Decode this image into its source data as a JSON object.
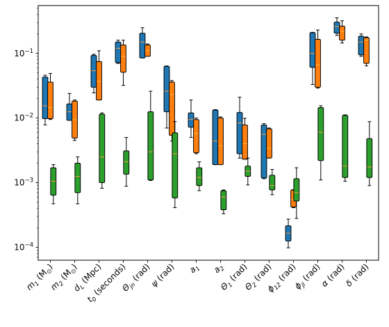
{
  "chart_data": {
    "type": "box",
    "yscale": "log",
    "ylim": [
      6.3e-05,
      0.55
    ],
    "y_ticks": [
      {
        "value": 0.0001,
        "base": "10",
        "exp": "−4"
      },
      {
        "value": 0.001,
        "base": "10",
        "exp": "−3"
      },
      {
        "value": 0.01,
        "base": "10",
        "exp": "−2"
      },
      {
        "value": 0.1,
        "base": "10",
        "exp": "−1"
      }
    ],
    "categories": [
      {
        "main": "m",
        "sub": "1",
        "unit": " (M",
        "unitsub": "⊙",
        "close": ")"
      },
      {
        "main": "m",
        "sub": "2",
        "unit": " (M",
        "unitsub": "⊙",
        "close": ")"
      },
      {
        "main": "d",
        "sub": "L",
        "unit": " (Mpc)",
        "unitsub": "",
        "close": ""
      },
      {
        "main": "t",
        "sub": "0",
        "unit": " (seconds)",
        "unitsub": "",
        "close": ""
      },
      {
        "main": "Θ",
        "sub": "jn",
        "unit": " (rad)",
        "unitsub": "",
        "close": ""
      },
      {
        "main": "ψ",
        "sub": "",
        "unit": " (rad)",
        "unitsub": "",
        "close": ""
      },
      {
        "main": "a",
        "sub": "1",
        "unit": "",
        "unitsub": "",
        "close": ""
      },
      {
        "main": "a",
        "sub": "2",
        "unit": "",
        "unitsub": "",
        "close": ""
      },
      {
        "main": "Θ",
        "sub": "1",
        "unit": " (rad)",
        "unitsub": "",
        "close": ""
      },
      {
        "main": "Θ",
        "sub": "2",
        "unit": " (rad)",
        "unitsub": "",
        "close": ""
      },
      {
        "main": "ϕ",
        "sub": "12",
        "unit": " (rad)",
        "unitsub": "",
        "close": ""
      },
      {
        "main": "ϕ",
        "sub": "jl",
        "unit": " (rad)",
        "unitsub": "",
        "close": ""
      },
      {
        "main": "α",
        "sub": "",
        "unit": " (rad)",
        "unitsub": "",
        "close": ""
      },
      {
        "main": "δ",
        "sub": "",
        "unit": " (rad)",
        "unitsub": "",
        "close": ""
      }
    ],
    "series": [
      {
        "color": "#1f77b4",
        "boxes": [
          [
            0.0078,
            0.0098,
            0.0155,
            0.043,
            0.046
          ],
          [
            0.0092,
            0.0092,
            0.0125,
            0.0165,
            0.024
          ],
          [
            0.0245,
            0.03,
            0.054,
            0.093,
            0.097
          ],
          [
            0.07,
            0.072,
            0.12,
            0.15,
            0.16
          ],
          [
            0.085,
            0.085,
            0.15,
            0.205,
            0.25
          ],
          [
            0.007,
            0.0125,
            0.026,
            0.063,
            0.064
          ],
          [
            0.005,
            0.0072,
            0.0095,
            0.012,
            0.019
          ],
          [
            0.0019,
            0.0019,
            0.0044,
            0.0133,
            0.0135
          ],
          [
            0.0024,
            0.0028,
            0.0084,
            0.0122,
            0.021
          ],
          [
            0.00115,
            0.00118,
            0.0056,
            0.0078,
            0.0082
          ],
          [
            9.8e-05,
            0.000125,
            0.000165,
            0.000215,
            0.000272
          ],
          [
            0.033,
            0.061,
            0.1,
            0.21,
            0.212
          ],
          [
            0.19,
            0.205,
            0.26,
            0.305,
            0.355
          ],
          [
            0.09,
            0.095,
            0.15,
            0.185,
            0.2
          ]
        ]
      },
      {
        "color": "#ff7f0e",
        "boxes": [
          [
            0.0095,
            0.0098,
            0.0145,
            0.036,
            0.049
          ],
          [
            0.0045,
            0.0049,
            0.0094,
            0.0183,
            0.019
          ],
          [
            0.019,
            0.019,
            0.037,
            0.075,
            0.11
          ],
          [
            0.032,
            0.051,
            0.09,
            0.135,
            0.16
          ],
          [
            0.09,
            0.09,
            0.11,
            0.135,
            0.14
          ],
          [
            0.0044,
            0.0054,
            0.023,
            0.036,
            0.038
          ],
          [
            0.0028,
            0.0029,
            0.0058,
            0.0095,
            0.01
          ],
          [
            0.0019,
            0.0019,
            0.0037,
            0.01,
            0.0104
          ],
          [
            0.0023,
            0.0023,
            0.004,
            0.0078,
            0.0099
          ],
          [
            0.0024,
            0.0024,
            0.0034,
            0.0068,
            0.007
          ],
          [
            0.00041,
            0.00042,
            0.00055,
            0.00077,
            0.00078
          ],
          [
            0.029,
            0.03,
            0.066,
            0.165,
            0.23
          ],
          [
            0.145,
            0.16,
            0.22,
            0.265,
            0.32
          ],
          [
            0.064,
            0.07,
            0.16,
            0.175,
            0.18
          ]
        ]
      },
      {
        "color": "#2ca02c",
        "boxes": [
          [
            0.00047,
            0.00064,
            0.00105,
            0.0017,
            0.0019
          ],
          [
            0.00047,
            0.0007,
            0.00125,
            0.002,
            0.0025
          ],
          [
            0.00082,
            0.001,
            0.0025,
            0.0115,
            0.012
          ],
          [
            0.00088,
            0.00135,
            0.0021,
            0.0031,
            0.005
          ],
          [
            0.00108,
            0.0011,
            0.003,
            0.0125,
            0.026
          ],
          [
            0.00041,
            0.00058,
            0.0028,
            0.0059,
            0.0088
          ],
          [
            0.00075,
            0.0009,
            0.0012,
            0.0017,
            0.0021
          ],
          [
            0.00033,
            0.00038,
            0.0006,
            0.00075,
            0.00077
          ],
          [
            0.00092,
            0.00125,
            0.0015,
            0.0018,
            0.0024
          ],
          [
            0.00065,
            0.00077,
            0.0009,
            0.0013,
            0.0016
          ],
          [
            0.00028,
            0.00052,
            0.0007,
            0.00115,
            0.0017
          ],
          [
            0.0011,
            0.0022,
            0.006,
            0.0145,
            0.0155
          ],
          [
            0.00105,
            0.0012,
            0.0018,
            0.011,
            0.0112
          ],
          [
            0.0009,
            0.0012,
            0.00175,
            0.0048,
            0.0088
          ]
        ]
      }
    ]
  }
}
